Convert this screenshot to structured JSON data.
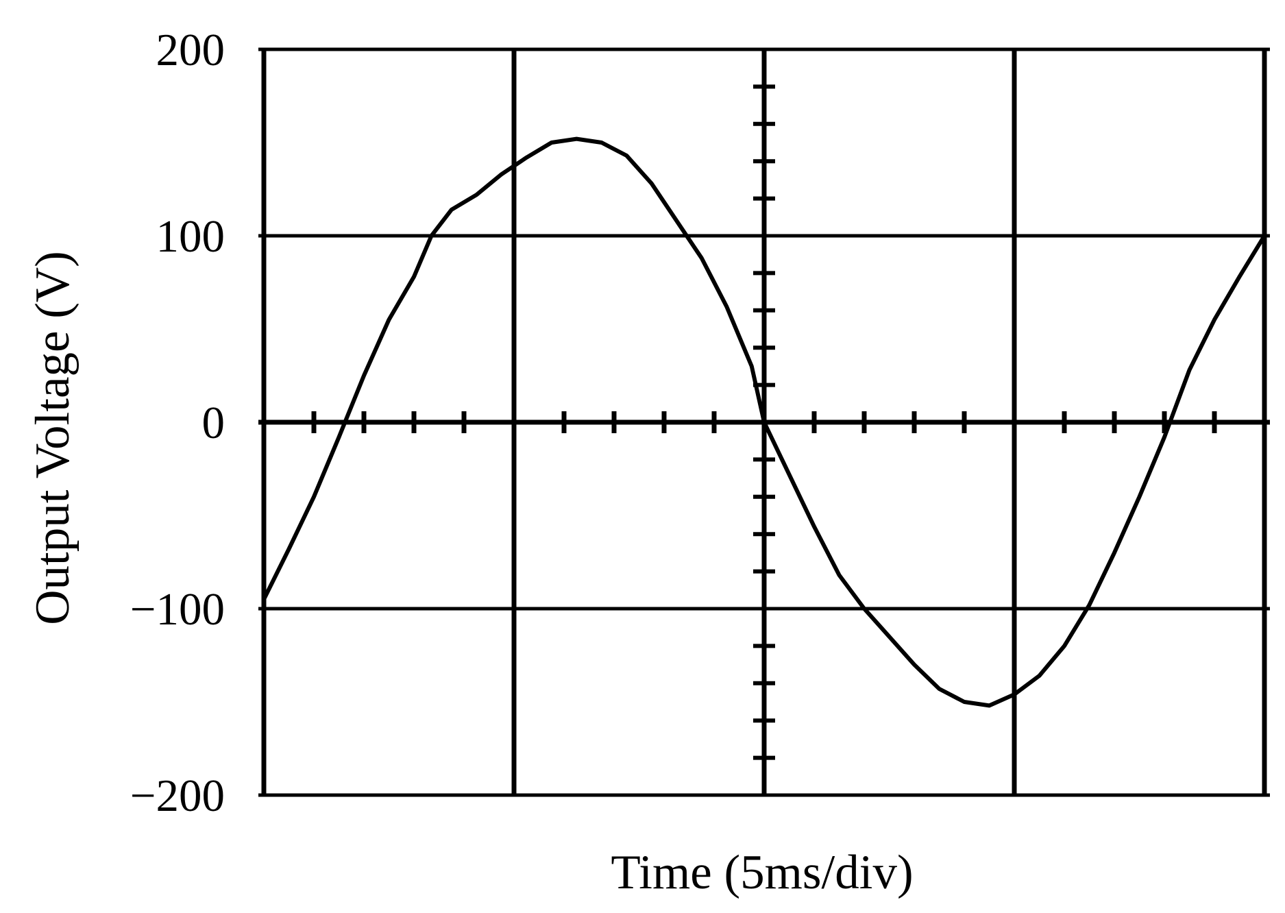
{
  "chart_data": {
    "type": "line",
    "title": "",
    "xlabel": "Time (5ms/div)",
    "ylabel": "Output Voltage (V)",
    "xlim": [
      0,
      4
    ],
    "ylim": [
      -200,
      200
    ],
    "x_divisions": 4,
    "y_divisions": 4,
    "minor_ticks_per_div": 5,
    "grid": true,
    "y_tick_labels": [
      {
        "value": 200,
        "label": "200"
      },
      {
        "value": 100,
        "label": "100"
      },
      {
        "value": 0,
        "label": "0"
      },
      {
        "value": -100,
        "label": "−100"
      },
      {
        "value": -200,
        "label": "−200"
      }
    ],
    "series": [
      {
        "color": "#000000",
        "points": [
          [
            0.0,
            -95
          ],
          [
            0.1,
            -68
          ],
          [
            0.2,
            -40
          ],
          [
            0.3,
            -8
          ],
          [
            0.4,
            25
          ],
          [
            0.5,
            55
          ],
          [
            0.6,
            78
          ],
          [
            0.67,
            100
          ],
          [
            0.75,
            114
          ],
          [
            0.85,
            122
          ],
          [
            0.95,
            133
          ],
          [
            1.05,
            142
          ],
          [
            1.15,
            150
          ],
          [
            1.25,
            152
          ],
          [
            1.35,
            150
          ],
          [
            1.45,
            143
          ],
          [
            1.55,
            128
          ],
          [
            1.65,
            108
          ],
          [
            1.75,
            88
          ],
          [
            1.85,
            62
          ],
          [
            1.95,
            30
          ],
          [
            2.0,
            0
          ],
          [
            2.1,
            -28
          ],
          [
            2.2,
            -56
          ],
          [
            2.3,
            -82
          ],
          [
            2.4,
            -100
          ],
          [
            2.5,
            -115
          ],
          [
            2.6,
            -130
          ],
          [
            2.7,
            -143
          ],
          [
            2.8,
            -150
          ],
          [
            2.9,
            -152
          ],
          [
            3.0,
            -146
          ],
          [
            3.1,
            -136
          ],
          [
            3.2,
            -120
          ],
          [
            3.3,
            -98
          ],
          [
            3.4,
            -70
          ],
          [
            3.5,
            -40
          ],
          [
            3.6,
            -8
          ],
          [
            3.7,
            28
          ],
          [
            3.8,
            55
          ],
          [
            3.9,
            78
          ],
          [
            4.0,
            100
          ]
        ]
      }
    ]
  }
}
